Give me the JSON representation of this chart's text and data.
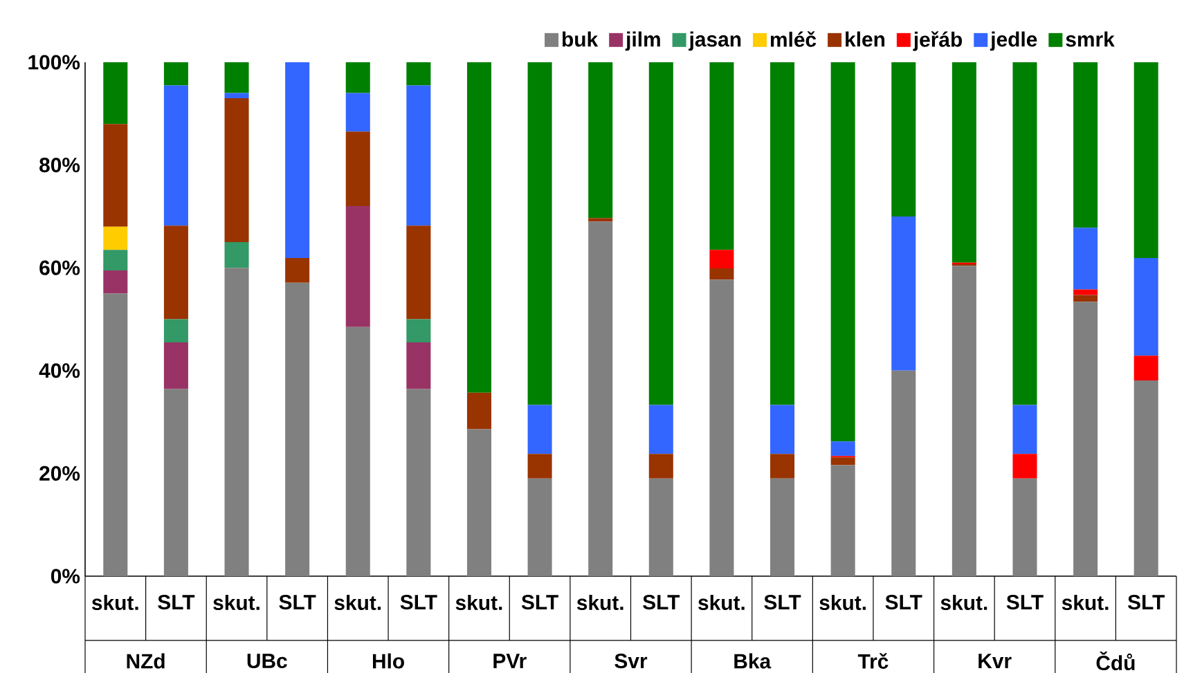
{
  "chart_data": {
    "type": "bar",
    "stacked": true,
    "categories": [
      "skut.",
      "SLT",
      "skut.",
      "SLT",
      "skut.",
      "SLT",
      "skut.",
      "SLT",
      "skut.",
      "SLT",
      "skut.",
      "SLT",
      "skut.",
      "SLT",
      "skut.",
      "SLT",
      "skut.",
      "SLT"
    ],
    "annotations": [
      "NZd",
      "UBc",
      "Hlo",
      "PVr",
      "Svr",
      "Bka",
      "Trč",
      "Kvr",
      "Čdů"
    ],
    "series": [
      {
        "name": "buk",
        "color": "#808080",
        "values": [
          55,
          36.4,
          60,
          57.1,
          48.5,
          36.4,
          28.6,
          19,
          69,
          19,
          57.7,
          19,
          21.6,
          40,
          60.4,
          19,
          53.4,
          38.1
        ]
      },
      {
        "name": "jilm",
        "color": "#993366",
        "values": [
          4.5,
          9.1,
          0,
          0,
          23.5,
          9.1,
          0,
          0,
          0,
          0,
          0,
          0,
          0,
          0,
          0,
          0,
          0,
          0
        ]
      },
      {
        "name": "jasan",
        "color": "#339966",
        "values": [
          4,
          4.5,
          5,
          0,
          0,
          4.5,
          0,
          0,
          0,
          0,
          0,
          0,
          0,
          0,
          0,
          0,
          0,
          0
        ]
      },
      {
        "name": "mléč",
        "color": "#ffcc00",
        "values": [
          4.5,
          0,
          0,
          0,
          0,
          0,
          0,
          0,
          0,
          0,
          0,
          0,
          0,
          0,
          0,
          0,
          0,
          0
        ]
      },
      {
        "name": "klen",
        "color": "#993300",
        "values": [
          20,
          18.2,
          28,
          4.8,
          14.5,
          18.2,
          7.1,
          4.8,
          0.7,
          4.8,
          2.2,
          4.8,
          1.5,
          0,
          0.3,
          0,
          1.3,
          0
        ]
      },
      {
        "name": "jeřáb",
        "color": "#ff0000",
        "values": [
          0,
          0,
          0,
          0,
          0,
          0,
          0,
          0,
          0,
          0,
          3.6,
          0,
          0.3,
          0,
          0.3,
          4.8,
          1.1,
          4.8
        ]
      },
      {
        "name": "jedle",
        "color": "#3366ff",
        "values": [
          0,
          27.3,
          1,
          38.1,
          7.5,
          27.3,
          0,
          9.5,
          0,
          9.5,
          0,
          9.5,
          2.8,
          30,
          0,
          9.5,
          12,
          19
        ]
      },
      {
        "name": "smrk",
        "color": "#008000",
        "values": [
          12,
          4.5,
          6,
          0,
          6,
          4.5,
          64.3,
          66.7,
          30.3,
          66.7,
          36.5,
          66.7,
          73.8,
          30,
          39,
          66.7,
          32.2,
          38.1
        ]
      }
    ],
    "ylim": [
      0,
      100
    ],
    "yticks": [
      {
        "value": 0,
        "label": "0%"
      },
      {
        "value": 20,
        "label": "20%"
      },
      {
        "value": 40,
        "label": "40%"
      },
      {
        "value": 60,
        "label": "60%"
      },
      {
        "value": 80,
        "label": "80%"
      },
      {
        "value": 100,
        "label": "100%"
      }
    ],
    "legend": "top right",
    "grid": false
  }
}
